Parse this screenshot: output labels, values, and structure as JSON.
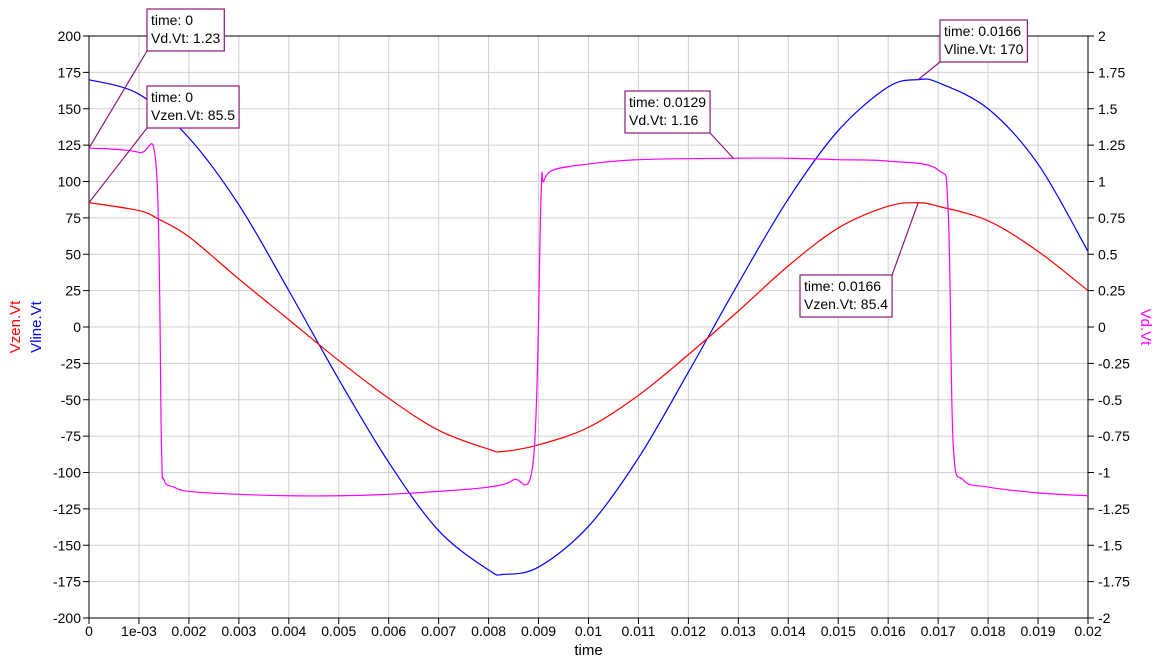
{
  "chart_data": {
    "type": "line",
    "xlabel": "time",
    "ylabel_left": [
      {
        "text": "Vzen.Vt",
        "color": "#ff0000"
      },
      {
        "text": "Vline.Vt",
        "color": "#0000ff"
      }
    ],
    "ylabel_right": {
      "text": "Vd.Vt",
      "color": "#ff00ff"
    },
    "xlim": [
      0,
      0.02
    ],
    "ylim_left": [
      -200,
      200
    ],
    "ylim_right": [
      -2,
      2
    ],
    "grid": true,
    "x_ticks": [
      "0",
      "1e-03",
      "0.002",
      "0.003",
      "0.004",
      "0.005",
      "0.006",
      "0.007",
      "0.008",
      "0.009",
      "0.01",
      "0.011",
      "0.012",
      "0.013",
      "0.014",
      "0.015",
      "0.016",
      "0.017",
      "0.018",
      "0.019",
      "0.02"
    ],
    "y_ticks_left": [
      "200",
      "175",
      "150",
      "125",
      "100",
      "75",
      "50",
      "25",
      "0",
      "-25",
      "-50",
      "-75",
      "-100",
      "-125",
      "-150",
      "-175",
      "-200"
    ],
    "y_ticks_right": [
      "2",
      "1.75",
      "1.5",
      "1.25",
      "1",
      "0.75",
      "0.5",
      "0.25",
      "0",
      "-0.25",
      "-0.5",
      "-0.75",
      "-1",
      "-1.25",
      "-1.5",
      "-1.75",
      "-2"
    ],
    "series": [
      {
        "name": "Vline.Vt",
        "axis": "left",
        "color": "#0000ff",
        "x": [
          0,
          0.001,
          0.002,
          0.003,
          0.004,
          0.005,
          0.006,
          0.007,
          0.008,
          0.0083,
          0.009,
          0.01,
          0.011,
          0.012,
          0.013,
          0.014,
          0.015,
          0.016,
          0.0166,
          0.017,
          0.018,
          0.019,
          0.02
        ],
        "y": [
          170,
          160,
          130,
          84,
          25,
          -36,
          -93,
          -140,
          -167,
          -170,
          -165,
          -137,
          -90,
          -31,
          30,
          88,
          135,
          165,
          170,
          168,
          150,
          112,
          52
        ]
      },
      {
        "name": "Vzen.Vt",
        "axis": "left",
        "color": "#ff0000",
        "x": [
          0,
          0.001,
          0.0014,
          0.002,
          0.003,
          0.004,
          0.005,
          0.006,
          0.007,
          0.008,
          0.0083,
          0.009,
          0.01,
          0.011,
          0.012,
          0.013,
          0.014,
          0.015,
          0.016,
          0.0166,
          0.017,
          0.018,
          0.019,
          0.02
        ],
        "y": [
          85.5,
          80,
          74,
          62,
          33,
          5,
          -23,
          -49,
          -71,
          -84,
          -85.5,
          -81,
          -69,
          -47,
          -19,
          11,
          42,
          68,
          83,
          85.4,
          83,
          73,
          52,
          25
        ]
      },
      {
        "name": "Vd.Vt",
        "axis": "right",
        "color": "#ff00ff",
        "x": [
          0,
          0.001,
          0.00135,
          0.00145,
          0.0015,
          0.0017,
          0.002,
          0.003,
          0.004,
          0.005,
          0.006,
          0.007,
          0.008,
          0.0085,
          0.0089,
          0.00905,
          0.0091,
          0.0093,
          0.01,
          0.011,
          0.0129,
          0.014,
          0.015,
          0.016,
          0.017,
          0.0172,
          0.0173,
          0.0175,
          0.018,
          0.019,
          0.02
        ],
        "y": [
          1.23,
          1.2,
          1.08,
          -0.8,
          -1.05,
          -1.1,
          -1.13,
          -1.15,
          -1.16,
          -1.16,
          -1.15,
          -1.13,
          -1.1,
          -1.05,
          -0.9,
          0.9,
          1.0,
          1.08,
          1.12,
          1.15,
          1.16,
          1.16,
          1.15,
          1.14,
          1.08,
          0.8,
          -0.8,
          -1.05,
          -1.1,
          -1.14,
          -1.16
        ]
      }
    ],
    "annotations": [
      {
        "lines": [
          "time: 0",
          "Vd.Vt: 1.23"
        ],
        "x": 0,
        "y": 1.23,
        "axis": "right"
      },
      {
        "lines": [
          "time: 0",
          "Vzen.Vt: 85.5"
        ],
        "x": 0,
        "y": 85.5,
        "axis": "left"
      },
      {
        "lines": [
          "time: 0.0129",
          "Vd.Vt: 1.16"
        ],
        "x": 0.0129,
        "y": 1.16,
        "axis": "right"
      },
      {
        "lines": [
          "time: 0.0166",
          "Vline.Vt: 170"
        ],
        "x": 0.0166,
        "y": 170,
        "axis": "left"
      },
      {
        "lines": [
          "time: 0.0166",
          "Vzen.Vt: 85.4"
        ],
        "x": 0.0166,
        "y": 85.4,
        "axis": "left"
      }
    ]
  }
}
